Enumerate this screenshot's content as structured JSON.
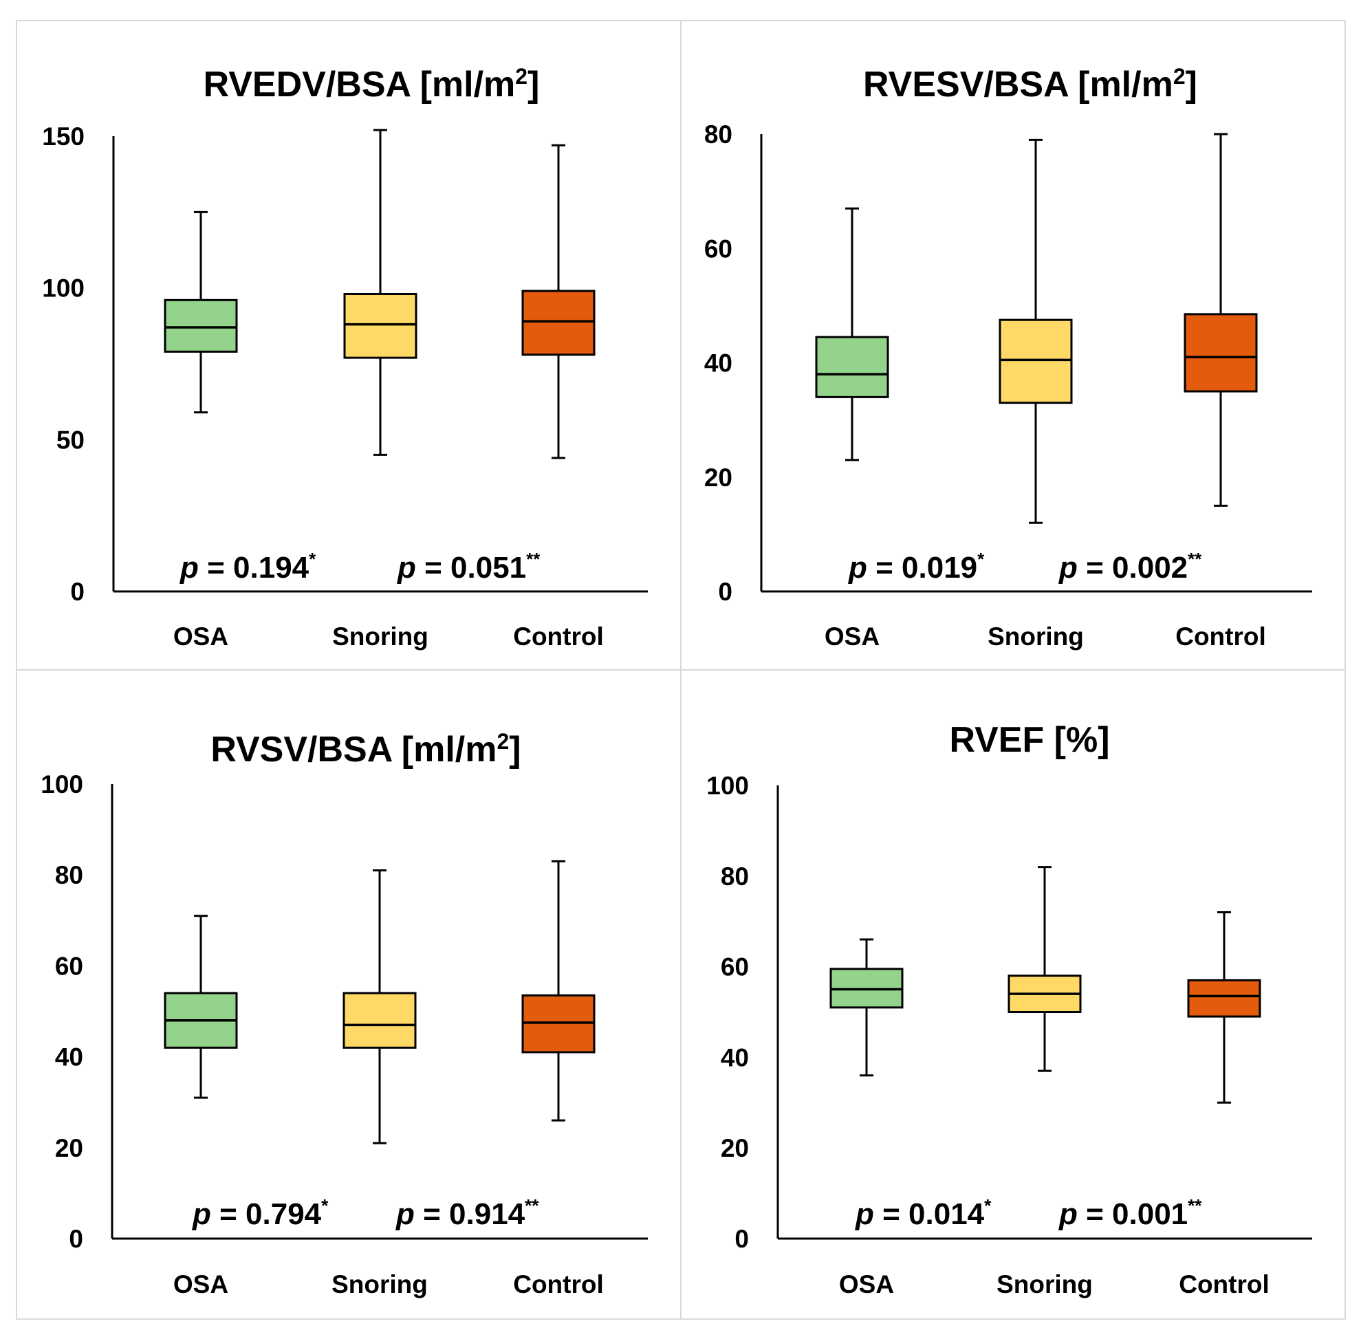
{
  "chart_data": [
    {
      "type": "box",
      "title": "RVEDV/BSA [ml/m",
      "title_sup": "2",
      "title_end": "]",
      "ylim": [
        0,
        150
      ],
      "yticks": [
        "0",
        "50",
        "100",
        "150"
      ],
      "yticks_values": [
        0,
        50,
        100,
        150
      ],
      "categories": [
        "OSA",
        "Snoring",
        "Control"
      ],
      "boxes": [
        {
          "min": 59,
          "q1": 79,
          "median": 87,
          "q3": 96,
          "max": 125
        },
        {
          "min": 45,
          "q1": 77,
          "median": 88,
          "q3": 98,
          "max": 152
        },
        {
          "min": 44,
          "q1": 78,
          "median": 89,
          "q3": 99,
          "max": 147
        }
      ],
      "pvalues": [
        {
          "label": "p",
          "text": " = 0.194",
          "sup": "*"
        },
        {
          "label": "p",
          "text": " = 0.051",
          "sup": "**"
        }
      ]
    },
    {
      "type": "box",
      "title": "RVESV/BSA [ml/m",
      "title_sup": "2",
      "title_end": "]",
      "ylim": [
        0,
        80
      ],
      "yticks": [
        "0",
        "20",
        "40",
        "60",
        "80"
      ],
      "yticks_values": [
        0,
        20,
        40,
        60,
        80
      ],
      "categories": [
        "OSA",
        "Snoring",
        "Control"
      ],
      "boxes": [
        {
          "min": 23,
          "q1": 34,
          "median": 38,
          "q3": 44.5,
          "max": 67
        },
        {
          "min": 12,
          "q1": 33,
          "median": 40.5,
          "q3": 47.5,
          "max": 79
        },
        {
          "min": 15,
          "q1": 35,
          "median": 41,
          "q3": 48.5,
          "max": 80
        }
      ],
      "pvalues": [
        {
          "label": "p",
          "text": " = 0.019",
          "sup": "*"
        },
        {
          "label": "p",
          "text": " = 0.002",
          "sup": "**"
        }
      ]
    },
    {
      "type": "box",
      "title": "RVSV/BSA [ml/m",
      "title_sup": "2",
      "title_end": "]",
      "ylim": [
        0,
        100
      ],
      "yticks": [
        "0",
        "20",
        "40",
        "60",
        "80",
        "100"
      ],
      "yticks_values": [
        0,
        20,
        40,
        60,
        80,
        100
      ],
      "categories": [
        "OSA",
        "Snoring",
        "Control"
      ],
      "boxes": [
        {
          "min": 31,
          "q1": 42,
          "median": 48,
          "q3": 54,
          "max": 71
        },
        {
          "min": 21,
          "q1": 42,
          "median": 47,
          "q3": 54,
          "max": 81
        },
        {
          "min": 26,
          "q1": 41,
          "median": 47.5,
          "q3": 53.5,
          "max": 83
        }
      ],
      "pvalues": [
        {
          "label": "p",
          "text": " = 0.794",
          "sup": "*"
        },
        {
          "label": "p",
          "text": " = 0.914",
          "sup": "**"
        }
      ]
    },
    {
      "type": "box",
      "title": "RVEF [%]",
      "title_sup": "",
      "title_end": "",
      "ylim": [
        0,
        100
      ],
      "yticks": [
        "0",
        "20",
        "40",
        "60",
        "80",
        "100"
      ],
      "yticks_values": [
        0,
        20,
        40,
        60,
        80,
        100
      ],
      "categories": [
        "OSA",
        "Snoring",
        "Control"
      ],
      "boxes": [
        {
          "min": 36,
          "q1": 51,
          "median": 55,
          "q3": 59.5,
          "max": 66
        },
        {
          "min": 37,
          "q1": 50,
          "median": 54,
          "q3": 58,
          "max": 82
        },
        {
          "min": 30,
          "q1": 49,
          "median": 53.5,
          "q3": 57,
          "max": 72
        }
      ],
      "pvalues": [
        {
          "label": "p",
          "text": " = 0.014",
          "sup": "*"
        },
        {
          "label": "p",
          "text": " = 0.001",
          "sup": "**"
        }
      ]
    }
  ],
  "colors": {
    "OSA": "#93d38c",
    "Snoring": "#ffd966",
    "Control": "#e35b0c"
  }
}
